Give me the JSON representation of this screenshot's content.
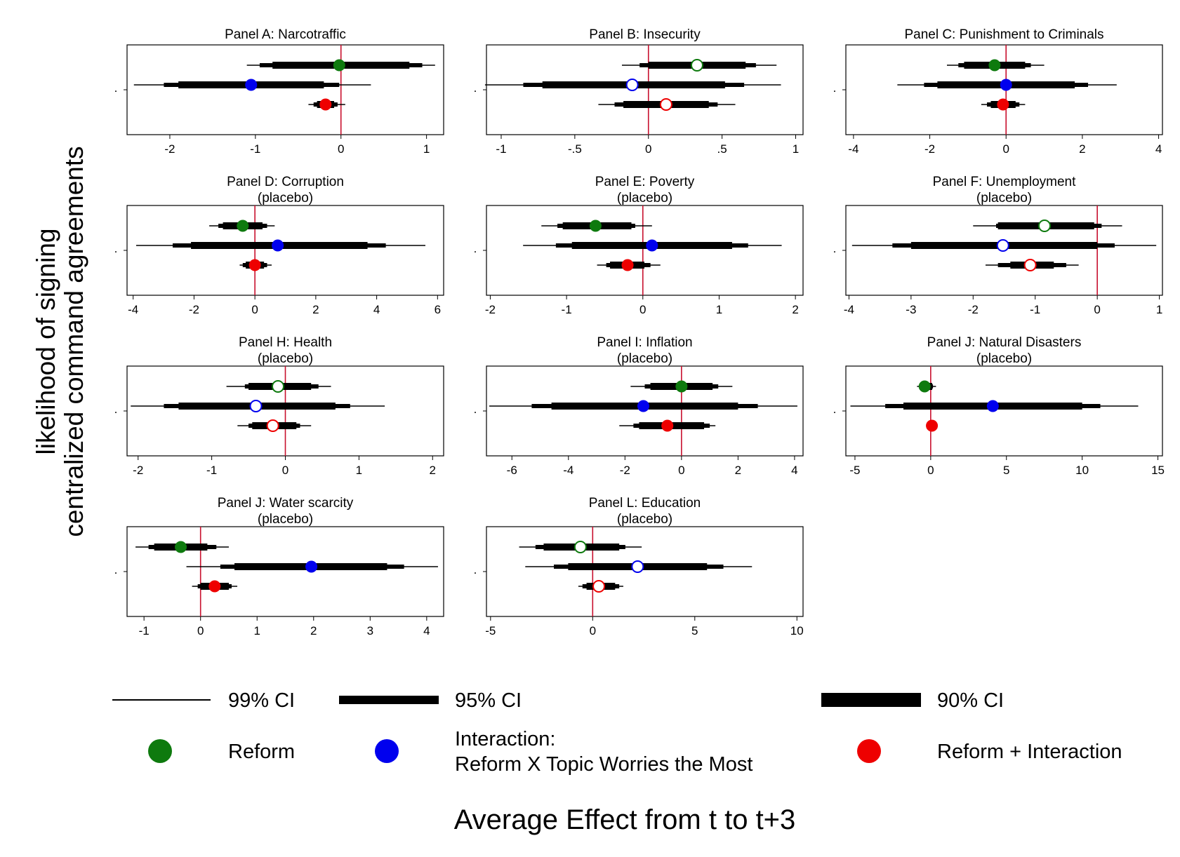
{
  "figure": {
    "ylabel_line1": "likelihood of signing",
    "ylabel_line2": "centralized command agreements",
    "xlabel": "Average Effect from t to t+3",
    "ytick_label": "."
  },
  "legend": {
    "ci99": "99% CI",
    "ci95": "95% CI",
    "ci90": "90% CI",
    "reform": "Reform",
    "interaction_line1": "Interaction:",
    "interaction_line2": "Reform X Topic Worries the Most",
    "reform_plus": "Reform + Interaction"
  },
  "colors": {
    "reform": "#0e7a0e",
    "interaction": "#0000ee",
    "reform_plus": "#ee0000",
    "zero_line": "#c8102e"
  },
  "chart_data": [
    {
      "type": "scatter",
      "title": "Panel A: Narcotraffic",
      "subtitle": "",
      "xlim": [
        -2.5,
        1.2
      ],
      "xticks": [
        -2,
        -1,
        0,
        1
      ],
      "xticklabels": [
        "-2",
        "-1",
        "0",
        "1"
      ],
      "series": [
        {
          "name": "Reform",
          "point": -0.02,
          "ci90": [
            -0.8,
            0.8
          ],
          "ci95": [
            -0.95,
            0.95
          ],
          "ci99": [
            -1.1,
            1.1
          ],
          "significant": true
        },
        {
          "name": "Interaction",
          "point": -1.05,
          "ci90": [
            -1.9,
            -0.2
          ],
          "ci95": [
            -2.07,
            -0.02
          ],
          "ci99": [
            -2.42,
            0.35
          ],
          "significant": true
        },
        {
          "name": "Reform + Interaction",
          "point": -0.18,
          "ci90": [
            -0.28,
            -0.08
          ],
          "ci95": [
            -0.32,
            -0.04
          ],
          "ci99": [
            -0.38,
            0.05
          ],
          "significant": true
        }
      ]
    },
    {
      "type": "scatter",
      "title": "Panel B: Insecurity",
      "subtitle": "",
      "xlim": [
        -1.1,
        1.05
      ],
      "xticks": [
        -1,
        -0.5,
        0,
        0.5,
        1
      ],
      "xticklabels": [
        "-1",
        "-.5",
        "0",
        ".5",
        "1"
      ],
      "series": [
        {
          "name": "Reform",
          "point": 0.33,
          "ci90": [
            0.0,
            0.66
          ],
          "ci95": [
            -0.06,
            0.73
          ],
          "ci99": [
            -0.18,
            0.87
          ],
          "significant": false
        },
        {
          "name": "Interaction",
          "point": -0.11,
          "ci90": [
            -0.72,
            0.52
          ],
          "ci95": [
            -0.85,
            0.65
          ],
          "ci99": [
            -1.11,
            0.9
          ],
          "significant": false
        },
        {
          "name": "Reform + Interaction",
          "point": 0.12,
          "ci90": [
            -0.17,
            0.41
          ],
          "ci95": [
            -0.23,
            0.47
          ],
          "ci99": [
            -0.34,
            0.59
          ],
          "significant": false
        }
      ]
    },
    {
      "type": "scatter",
      "title": "Panel C: Punishment to Criminals",
      "subtitle": "",
      "xlim": [
        -4.2,
        4.1
      ],
      "xticks": [
        -4,
        -2,
        0,
        2,
        4
      ],
      "xticklabels": [
        "-4",
        "-2",
        "0",
        "2",
        "4"
      ],
      "series": [
        {
          "name": "Reform",
          "point": -0.3,
          "ci90": [
            -1.1,
            0.5
          ],
          "ci95": [
            -1.25,
            0.65
          ],
          "ci99": [
            -1.55,
            1.0
          ],
          "significant": true
        },
        {
          "name": "Interaction",
          "point": 0.0,
          "ci90": [
            -1.8,
            1.8
          ],
          "ci95": [
            -2.15,
            2.15
          ],
          "ci99": [
            -2.85,
            2.9
          ],
          "significant": true
        },
        {
          "name": "Reform + Interaction",
          "point": -0.08,
          "ci90": [
            -0.4,
            0.25
          ],
          "ci95": [
            -0.5,
            0.35
          ],
          "ci99": [
            -0.65,
            0.5
          ],
          "significant": true
        }
      ]
    },
    {
      "type": "scatter",
      "title": "Panel D: Corruption",
      "subtitle": "(placebo)",
      "xlim": [
        -4.2,
        6.2
      ],
      "xticks": [
        -4,
        -2,
        0,
        2,
        4,
        6
      ],
      "xticklabels": [
        "-4",
        "-2",
        "0",
        "2",
        "4",
        "6"
      ],
      "series": [
        {
          "name": "Reform",
          "point": -0.4,
          "ci90": [
            -1.05,
            0.25
          ],
          "ci95": [
            -1.2,
            0.4
          ],
          "ci99": [
            -1.5,
            0.65
          ],
          "significant": true
        },
        {
          "name": "Interaction",
          "point": 0.75,
          "ci90": [
            -2.1,
            3.7
          ],
          "ci95": [
            -2.7,
            4.3
          ],
          "ci99": [
            -3.9,
            5.6
          ],
          "significant": true
        },
        {
          "name": "Reform + Interaction",
          "point": 0.0,
          "ci90": [
            -0.3,
            0.3
          ],
          "ci95": [
            -0.4,
            0.4
          ],
          "ci99": [
            -0.5,
            0.55
          ],
          "significant": true
        }
      ]
    },
    {
      "type": "scatter",
      "title": "Panel E: Poverty",
      "subtitle": "(placebo)",
      "xlim": [
        -2.05,
        2.1
      ],
      "xticks": [
        -2,
        -1,
        0,
        1,
        2
      ],
      "xticklabels": [
        "-2",
        "-1",
        "0",
        "1",
        "2"
      ],
      "series": [
        {
          "name": "Reform",
          "point": -0.62,
          "ci90": [
            -1.05,
            -0.15
          ],
          "ci95": [
            -1.12,
            -0.1
          ],
          "ci99": [
            -1.33,
            0.12
          ],
          "significant": true
        },
        {
          "name": "Interaction",
          "point": 0.12,
          "ci90": [
            -0.93,
            1.17
          ],
          "ci95": [
            -1.14,
            1.38
          ],
          "ci99": [
            -1.57,
            1.82
          ],
          "significant": true
        },
        {
          "name": "Reform + Interaction",
          "point": -0.2,
          "ci90": [
            -0.43,
            0.02
          ],
          "ci95": [
            -0.48,
            0.1
          ],
          "ci99": [
            -0.6,
            0.23
          ],
          "significant": true
        }
      ]
    },
    {
      "type": "scatter",
      "title": "Panel F: Unemployment",
      "subtitle": "(placebo)",
      "xlim": [
        -4.05,
        1.05
      ],
      "xticks": [
        -4,
        -3,
        -2,
        -1,
        0,
        1
      ],
      "xticklabels": [
        "-4",
        "-3",
        "-2",
        "-1",
        "0",
        "1"
      ],
      "series": [
        {
          "name": "Reform",
          "point": -0.85,
          "ci90": [
            -1.6,
            -0.05
          ],
          "ci95": [
            -1.63,
            0.07
          ],
          "ci99": [
            -2.0,
            0.4
          ],
          "significant": false
        },
        {
          "name": "Interaction",
          "point": -1.52,
          "ci90": [
            -3.0,
            0.0
          ],
          "ci95": [
            -3.3,
            0.28
          ],
          "ci99": [
            -3.95,
            0.95
          ],
          "significant": false
        },
        {
          "name": "Reform + Interaction",
          "point": -1.08,
          "ci90": [
            -1.4,
            -0.7
          ],
          "ci95": [
            -1.6,
            -0.5
          ],
          "ci99": [
            -1.8,
            -0.3
          ],
          "significant": false
        }
      ]
    },
    {
      "type": "scatter",
      "title": "Panel H: Health",
      "subtitle": "(placebo)",
      "xlim": [
        -2.15,
        2.15
      ],
      "xticks": [
        -2,
        -1,
        0,
        1,
        2
      ],
      "xticklabels": [
        "-2",
        "-1",
        "0",
        "1",
        "2"
      ],
      "series": [
        {
          "name": "Reform",
          "point": -0.1,
          "ci90": [
            -0.5,
            0.35
          ],
          "ci95": [
            -0.55,
            0.45
          ],
          "ci99": [
            -0.8,
            0.62
          ],
          "significant": false
        },
        {
          "name": "Interaction",
          "point": -0.4,
          "ci90": [
            -1.45,
            0.68
          ],
          "ci95": [
            -1.65,
            0.88
          ],
          "ci99": [
            -2.1,
            1.35
          ],
          "significant": false
        },
        {
          "name": "Reform + Interaction",
          "point": -0.17,
          "ci90": [
            -0.45,
            0.15
          ],
          "ci95": [
            -0.5,
            0.2
          ],
          "ci99": [
            -0.65,
            0.35
          ],
          "significant": false
        }
      ]
    },
    {
      "type": "scatter",
      "title": "Panel I: Inflation",
      "subtitle": "(placebo)",
      "xlim": [
        -6.9,
        4.3
      ],
      "xticks": [
        -6,
        -4,
        -2,
        0,
        2,
        4
      ],
      "xticklabels": [
        "-6",
        "-4",
        "-2",
        "0",
        "2",
        "4"
      ],
      "series": [
        {
          "name": "Reform",
          "point": 0.0,
          "ci90": [
            -1.1,
            1.1
          ],
          "ci95": [
            -1.3,
            1.3
          ],
          "ci99": [
            -1.8,
            1.8
          ],
          "significant": true
        },
        {
          "name": "Interaction",
          "point": -1.35,
          "ci90": [
            -4.6,
            2.0
          ],
          "ci95": [
            -5.3,
            2.7
          ],
          "ci99": [
            -6.8,
            4.1
          ],
          "significant": true
        },
        {
          "name": "Reform + Interaction",
          "point": -0.5,
          "ci90": [
            -1.5,
            0.8
          ],
          "ci95": [
            -1.7,
            1.0
          ],
          "ci99": [
            -2.2,
            1.2
          ],
          "significant": true
        }
      ]
    },
    {
      "type": "scatter",
      "title": "Panel J: Natural Disasters",
      "subtitle": "(placebo)",
      "xlim": [
        -5.6,
        15.3
      ],
      "xticks": [
        -5,
        0,
        5,
        10,
        15
      ],
      "xticklabels": [
        "-5",
        "0",
        "5",
        "10",
        "15"
      ],
      "series": [
        {
          "name": "Reform",
          "point": -0.4,
          "ci90": [
            -0.7,
            0.1
          ],
          "ci95": [
            -0.75,
            0.15
          ],
          "ci99": [
            -0.9,
            0.35
          ],
          "significant": true
        },
        {
          "name": "Interaction",
          "point": 4.1,
          "ci90": [
            -1.8,
            10.0
          ],
          "ci95": [
            -3.0,
            11.2
          ],
          "ci99": [
            -5.3,
            13.7
          ],
          "significant": true
        },
        {
          "name": "Reform + Interaction",
          "point": 0.08,
          "ci90": [
            -0.08,
            0.24
          ],
          "ci95": [
            -0.12,
            0.3
          ],
          "ci99": [
            -0.15,
            0.35
          ],
          "significant": true
        }
      ]
    },
    {
      "type": "scatter",
      "title": "Panel J: Water scarcity",
      "subtitle": "(placebo)",
      "xlim": [
        -1.3,
        4.3
      ],
      "xticks": [
        -1,
        0,
        1,
        2,
        3,
        4
      ],
      "xticklabels": [
        "-1",
        "0",
        "1",
        "2",
        "3",
        "4"
      ],
      "series": [
        {
          "name": "Reform",
          "point": -0.35,
          "ci90": [
            -0.82,
            0.12
          ],
          "ci95": [
            -0.92,
            0.28
          ],
          "ci99": [
            -1.15,
            0.5
          ],
          "significant": true
        },
        {
          "name": "Interaction",
          "point": 1.96,
          "ci90": [
            0.6,
            3.3
          ],
          "ci95": [
            0.35,
            3.6
          ],
          "ci99": [
            -0.25,
            4.2
          ],
          "significant": true
        },
        {
          "name": "Reform + Interaction",
          "point": 0.25,
          "ci90": [
            0.0,
            0.5
          ],
          "ci95": [
            -0.05,
            0.55
          ],
          "ci99": [
            -0.15,
            0.65
          ],
          "significant": true
        }
      ]
    },
    {
      "type": "scatter",
      "title": "Panel L: Education",
      "subtitle": "(placebo)",
      "xlim": [
        -5.2,
        10.3
      ],
      "xticks": [
        -5,
        0,
        5,
        10
      ],
      "xticklabels": [
        "-5",
        "0",
        "5",
        "10"
      ],
      "series": [
        {
          "name": "Reform",
          "point": -0.6,
          "ci90": [
            -2.4,
            1.3
          ],
          "ci95": [
            -2.8,
            1.6
          ],
          "ci99": [
            -3.6,
            2.4
          ],
          "significant": false
        },
        {
          "name": "Interaction",
          "point": 2.2,
          "ci90": [
            -1.2,
            5.6
          ],
          "ci95": [
            -1.9,
            6.4
          ],
          "ci99": [
            -3.3,
            7.8
          ],
          "significant": false
        },
        {
          "name": "Reform + Interaction",
          "point": 0.3,
          "ci90": [
            -0.3,
            1.1
          ],
          "ci95": [
            -0.5,
            1.3
          ],
          "ci99": [
            -0.7,
            1.5
          ],
          "significant": false
        }
      ]
    }
  ]
}
